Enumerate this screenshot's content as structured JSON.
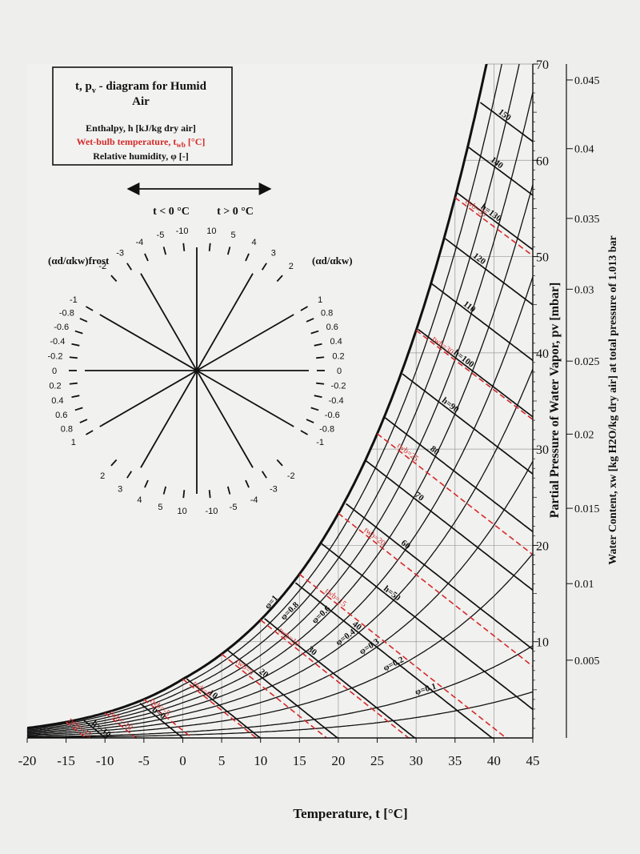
{
  "legend": {
    "title_line1": "t, p",
    "title_sub": "v",
    "title_rest": " - diagram for Humid",
    "title_line2": "Air",
    "enthalpy": "Enthalpy, h [kJ/kg dry air]",
    "wetbulb_pre": "Wet-bulb temperature, t",
    "wetbulb_sub": "wb",
    "wetbulb_post": " [°C]",
    "rh": "Relative humidity, φ [-]"
  },
  "protractor": {
    "arrow_left_label": "t < 0 °C",
    "arrow_right_label": "t > 0 °C",
    "left_title": "(αd/αkw)frost",
    "right_title": "(αd/αkw)",
    "top_left_ticks": [
      "-10",
      "-5",
      "-4",
      "-3",
      "-2"
    ],
    "top_right_ticks": [
      "10",
      "5",
      "4",
      "3",
      "2"
    ],
    "bottom_left_ticks": [
      "2",
      "3",
      "4",
      "5",
      "10"
    ],
    "bottom_right_ticks": [
      "-10",
      "-5",
      "-4",
      "-3",
      "-2"
    ],
    "left_ticks": [
      "-1",
      "-0.8",
      "-0.6",
      "-0.4",
      "-0.2",
      "0",
      "0.2",
      "0.4",
      "0.6",
      "0.8",
      "1"
    ],
    "right_ticks": [
      "1",
      "0.8",
      "0.6",
      "0.4",
      "0.2",
      "0",
      "-0.2",
      "-0.4",
      "-0.6",
      "-0.8",
      "-1"
    ]
  },
  "chart_data": {
    "type": "line",
    "xlabel": "Temperature, t [°C]",
    "ylabel_right_inner": "Partial Pressure of Water Vapor, pv [mbar]",
    "ylabel_right_outer": "Water Content, xw [kg H2O/kg dry air] at total pressure of 1.013 bar",
    "xlim": [
      -20,
      45
    ],
    "ylim_mbar": [
      0,
      70
    ],
    "x_ticks": [
      "-20",
      "-15",
      "-10",
      "-5",
      "0",
      "5",
      "10",
      "15",
      "20",
      "25",
      "30",
      "35",
      "40",
      "45"
    ],
    "p_ticks": [
      "10",
      "20",
      "30",
      "40",
      "50",
      "60",
      "70"
    ],
    "p_tick_values": [
      10,
      20,
      30,
      40,
      50,
      60,
      70
    ],
    "x_ticks_water": [
      "0.005",
      "0.01",
      "0.015",
      "0.02",
      "0.025",
      "0.03",
      "0.035",
      "0.04",
      "0.045"
    ],
    "x_tick_water_values": [
      0.005,
      0.01,
      0.015,
      0.02,
      0.025,
      0.03,
      0.035,
      0.04,
      0.045
    ],
    "total_pressure_bar": 1.013,
    "rh_series": [
      {
        "name": "φ=1",
        "phi": 1.0
      },
      {
        "name": "φ=0.8",
        "phi": 0.8
      },
      {
        "name": "φ=0.6",
        "phi": 0.6
      },
      {
        "name": "φ=0.4",
        "phi": 0.4
      },
      {
        "name": "φ=0.3",
        "phi": 0.3
      },
      {
        "name": "φ=0.2",
        "phi": 0.2
      },
      {
        "name": "φ=0.1",
        "phi": 0.1
      }
    ],
    "rh_unlabeled": [
      0.9,
      0.7,
      0.5,
      0.05
    ],
    "enthalpy_lines": [
      {
        "h": -10,
        "label": "h=-10"
      },
      {
        "h": 0,
        "label": "h=0"
      },
      {
        "h": 10,
        "label": "10"
      },
      {
        "h": 20,
        "label": "20"
      },
      {
        "h": 30,
        "label": "30"
      },
      {
        "h": 40,
        "label": "40"
      },
      {
        "h": 50,
        "label": "h=50"
      },
      {
        "h": 60,
        "label": "60"
      },
      {
        "h": 70,
        "label": "70"
      },
      {
        "h": 80,
        "label": "80"
      },
      {
        "h": 90,
        "label": "h=90"
      },
      {
        "h": 100,
        "label": "h=100"
      },
      {
        "h": 110,
        "label": "110"
      },
      {
        "h": 120,
        "label": "120"
      },
      {
        "h": 130,
        "label": "h=130"
      },
      {
        "h": 140,
        "label": "140"
      },
      {
        "h": 150,
        "label": "150"
      }
    ],
    "wetbulb_lines": [
      {
        "twb": -15,
        "label": "twb=-15"
      },
      {
        "twb": -10,
        "label": "twb=-10"
      },
      {
        "twb": -5,
        "label": "twb=-5"
      },
      {
        "twb": 0,
        "label": "twb=0"
      },
      {
        "twb": 5,
        "label": "twb=5"
      },
      {
        "twb": 10,
        "label": "twb=10"
      },
      {
        "twb": 15,
        "label": "twb=15"
      },
      {
        "twb": 20,
        "label": "twb=20"
      },
      {
        "twb": 25,
        "label": "twb=25"
      },
      {
        "twb": 30,
        "label": "twb=30"
      },
      {
        "twb": 35,
        "label": "twb=35"
      }
    ],
    "colors": {
      "wetbulb": "#d42a2a",
      "lines": "#111111",
      "grid": "#9a9a9a",
      "background": "#eeeeec"
    }
  }
}
